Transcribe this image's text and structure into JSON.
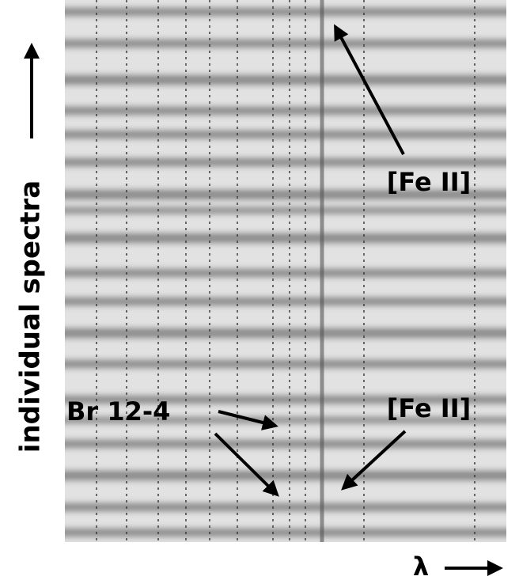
{
  "labels": {
    "y_axis": "individual spectra",
    "x_axis": "λ",
    "annotations": [
      "[Fe II]",
      "Br 12-4",
      "[Fe II]"
    ]
  }
}
